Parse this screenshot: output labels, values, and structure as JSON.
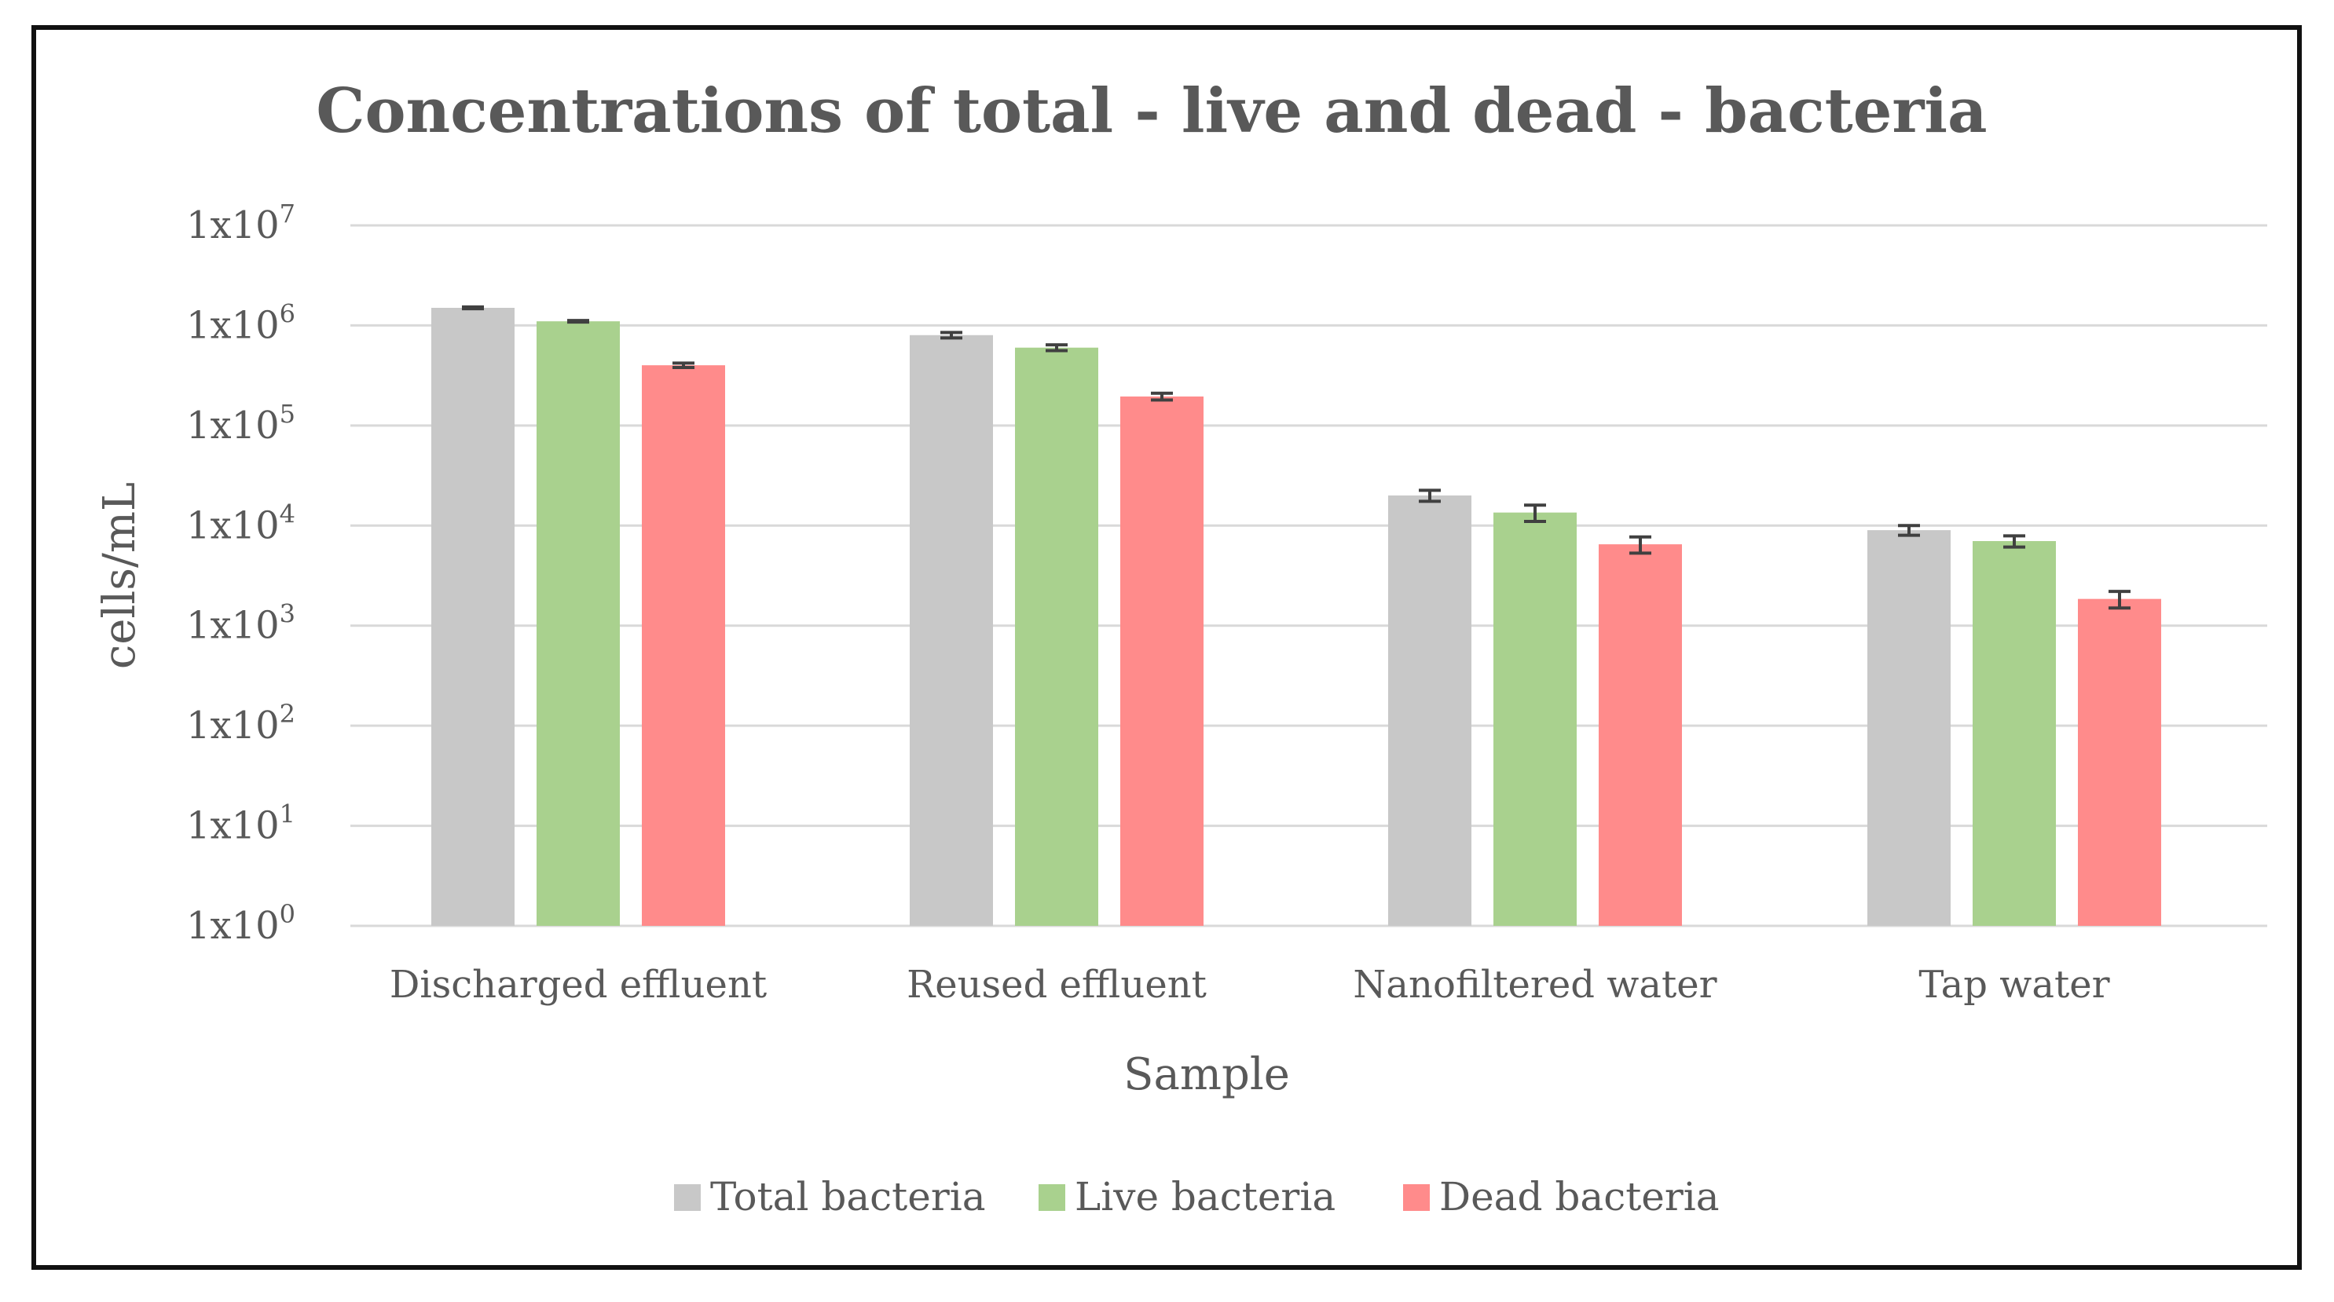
{
  "chart_data": {
    "type": "bar",
    "title": "Concentrations of total - live and dead - bacteria",
    "xlabel": "Sample",
    "ylabel": "cells/mL",
    "yscale": "log",
    "ylim": [
      1,
      10000000
    ],
    "y_ticks": [
      {
        "base": "1x10",
        "exp": "0",
        "value": 1
      },
      {
        "base": "1x10",
        "exp": "1",
        "value": 10
      },
      {
        "base": "1x10",
        "exp": "2",
        "value": 100
      },
      {
        "base": "1x10",
        "exp": "3",
        "value": 1000
      },
      {
        "base": "1x10",
        "exp": "4",
        "value": 10000
      },
      {
        "base": "1x10",
        "exp": "5",
        "value": 100000
      },
      {
        "base": "1x10",
        "exp": "6",
        "value": 1000000
      },
      {
        "base": "1x10",
        "exp": "7",
        "value": 10000000
      }
    ],
    "categories": [
      "Discharged effluent",
      "Reused effluent",
      "Nanofiltered water",
      "Tap water"
    ],
    "series": [
      {
        "name": "Total bacteria",
        "color": "#c8c8c8",
        "values": [
          1500000,
          800000,
          20000,
          9000
        ],
        "errors": [
          30000,
          50000,
          2500,
          1000
        ]
      },
      {
        "name": "Live bacteria",
        "color": "#a9d18e",
        "values": [
          1100000,
          600000,
          13500,
          7000
        ],
        "errors": [
          20000,
          40000,
          2500,
          900
        ]
      },
      {
        "name": "Dead bacteria",
        "color": "#ff8b8b",
        "values": [
          400000,
          195000,
          6500,
          1850
        ],
        "errors": [
          20000,
          15000,
          1200,
          350
        ]
      }
    ],
    "grid": true,
    "legend": "bottom"
  }
}
